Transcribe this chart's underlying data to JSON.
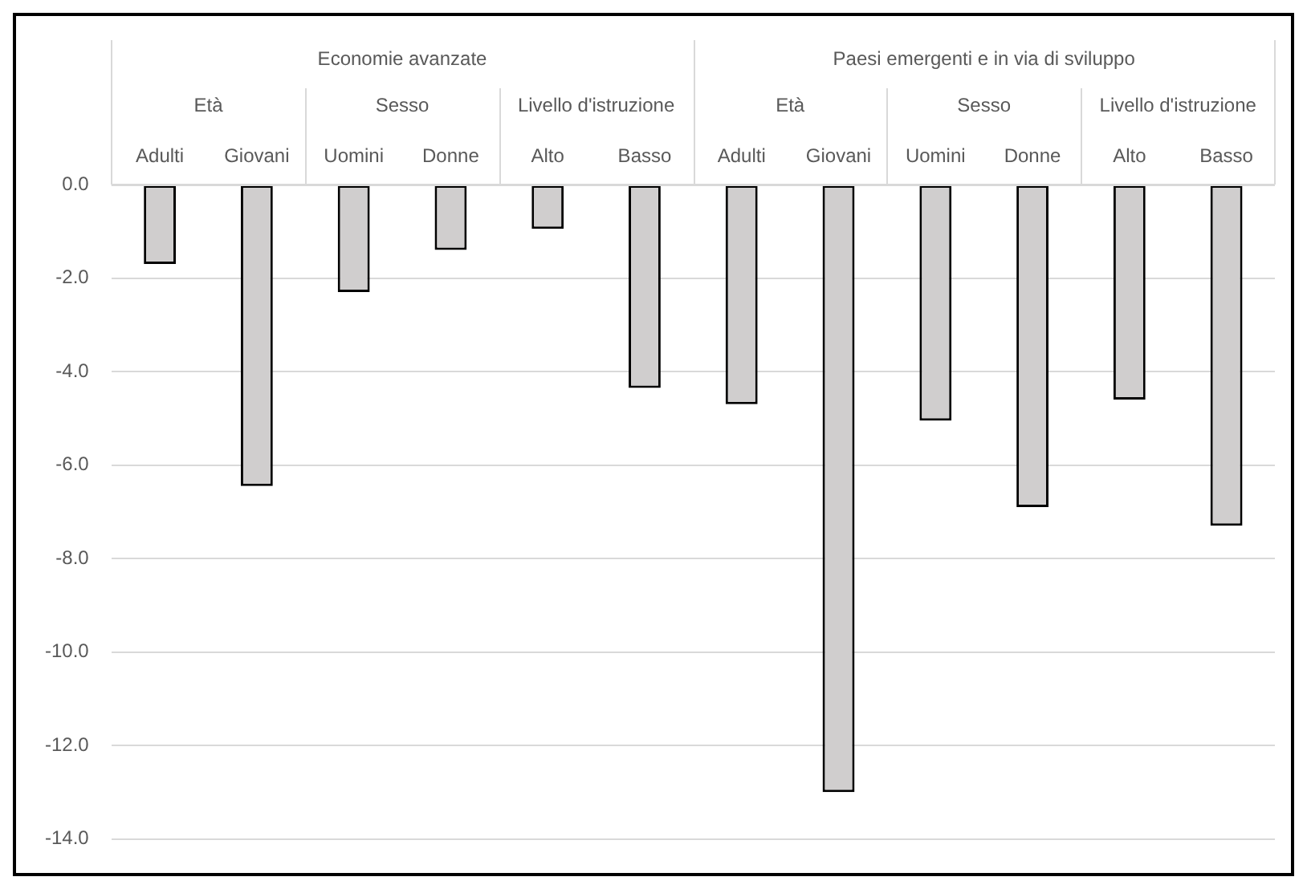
{
  "chart_data": {
    "type": "bar",
    "categories": [
      "Adulti",
      "Giovani",
      "Uomini",
      "Donne",
      "Alto",
      "Basso",
      "Adulti",
      "Giovani",
      "Uomini",
      "Donne",
      "Alto",
      "Basso"
    ],
    "values": [
      -1.7,
      -6.45,
      -2.3,
      -1.4,
      -0.95,
      -4.35,
      -4.7,
      -13.0,
      -5.05,
      -6.9,
      -4.6,
      -7.3
    ],
    "color": "#d0cece",
    "ylim": [
      -14,
      0
    ],
    "yticks": [
      {
        "value": 0,
        "label": "0.0"
      },
      {
        "value": -2,
        "label": "-2.0"
      },
      {
        "value": -4,
        "label": "-4.0"
      },
      {
        "value": -6,
        "label": "-6.0"
      },
      {
        "value": -8,
        "label": "-8.0"
      },
      {
        "value": -10,
        "label": "-10.0"
      },
      {
        "value": -12,
        "label": "-12.0"
      },
      {
        "value": -14,
        "label": "-14.0"
      }
    ],
    "grid": "y",
    "legend": false,
    "annotations": [
      "Economie avanzate",
      "Paesi emergenti e in via di sviluppo",
      "Età",
      "Sesso",
      "Livello d'istruzione",
      "Età",
      "Sesso",
      "Livello d'istruzione"
    ]
  }
}
